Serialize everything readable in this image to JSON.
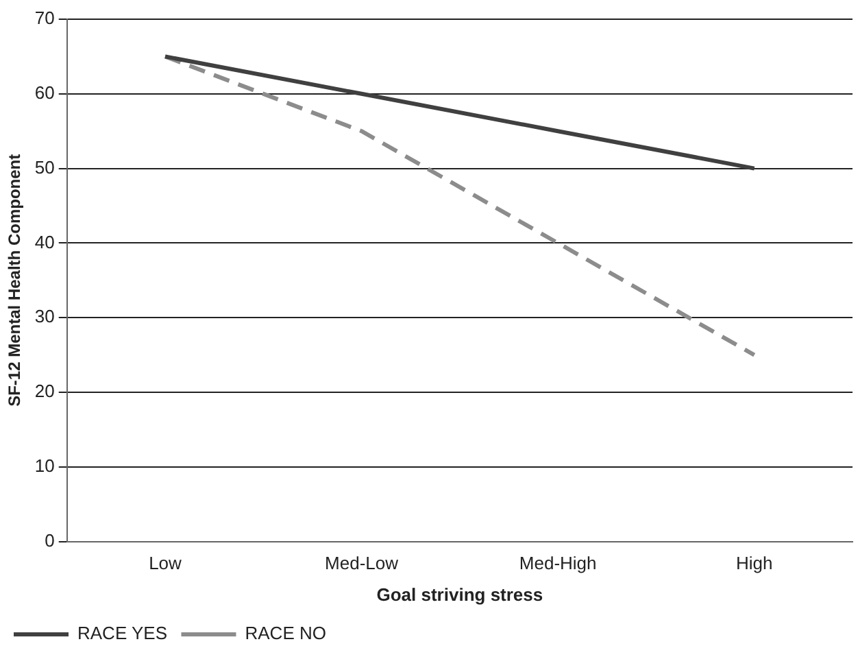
{
  "chart_data": {
    "type": "line",
    "xlabel": "Goal striving stress",
    "ylabel": "SF-12 Mental Health Component",
    "categories": [
      "Low",
      "Med-Low",
      "Med-High",
      "High"
    ],
    "series": [
      {
        "name": "RACE YES",
        "color": "#404040",
        "values": [
          65,
          60,
          55,
          50
        ],
        "line_style": "solid"
      },
      {
        "name": "RACE NO",
        "color": "#8c8c8c",
        "values": [
          65,
          55,
          40,
          25
        ],
        "line_style": "dashed"
      }
    ],
    "ylim": [
      0,
      70
    ],
    "yticks": [
      0,
      10,
      20,
      30,
      40,
      50,
      60,
      70
    ],
    "grid": "y",
    "legend": "bottom left",
    "marker": "none"
  }
}
